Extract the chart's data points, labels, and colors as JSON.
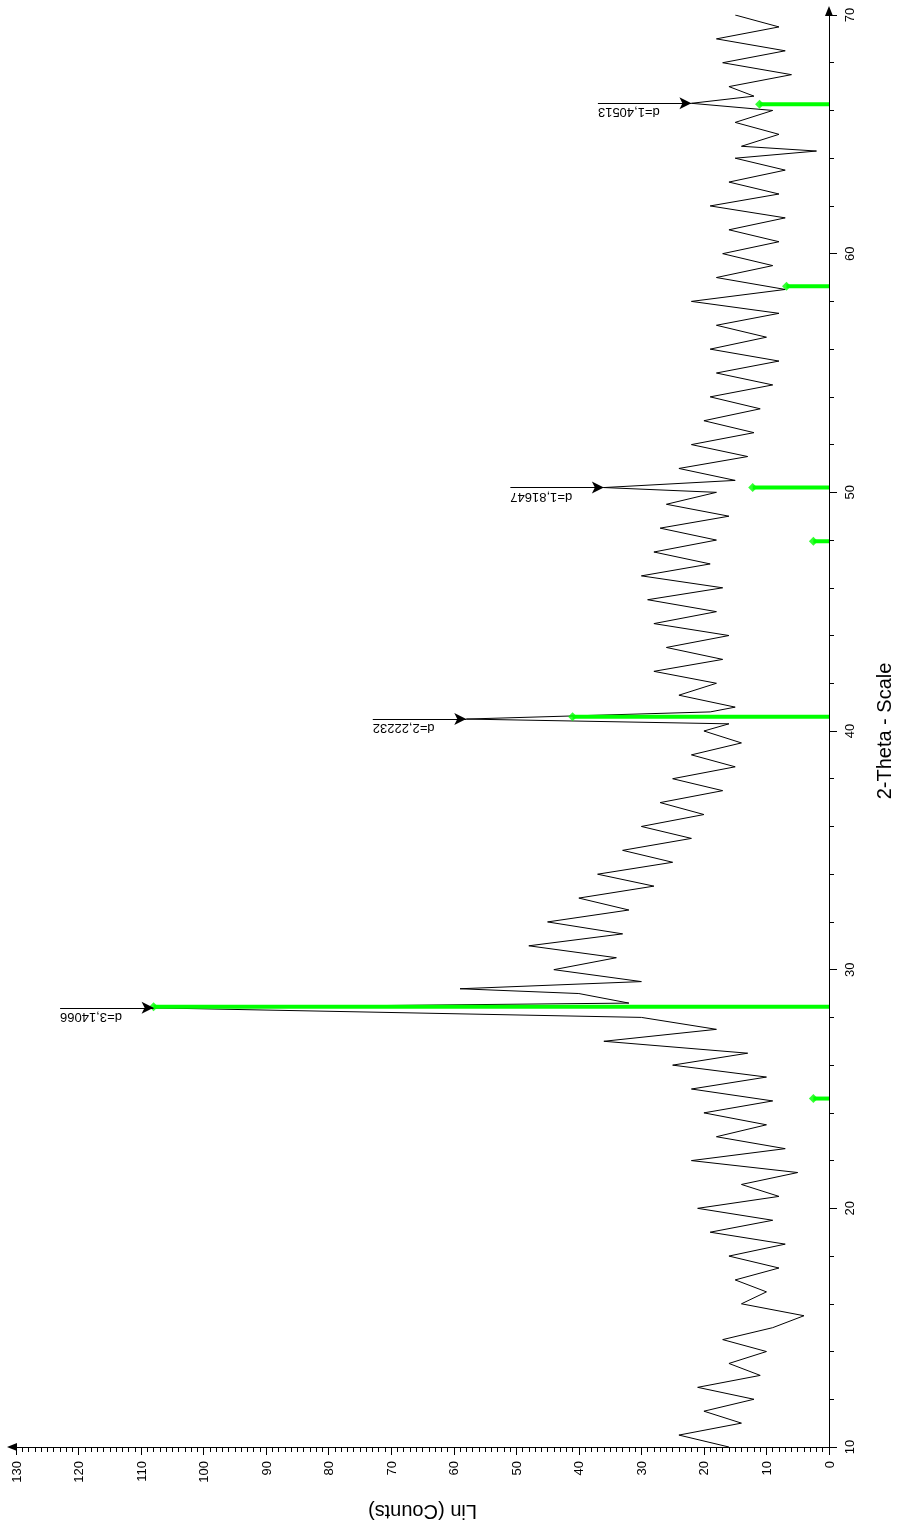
{
  "chart_data": {
    "type": "line",
    "orientation": "horizontal",
    "xlabel": "Lin (Counts)",
    "ylabel": "2-Theta - Scale",
    "xlim": [
      130,
      0
    ],
    "ylim": [
      10,
      70
    ],
    "xticks": [
      0,
      10,
      20,
      30,
      40,
      50,
      60,
      70,
      80,
      90,
      100,
      110,
      120,
      130
    ],
    "yticks": [
      10,
      20,
      30,
      40,
      50,
      60,
      70
    ],
    "grid": false,
    "series": [
      {
        "color": "#000000",
        "marker": "none",
        "x": [
          10,
          10.5,
          11,
          11.5,
          12,
          12.5,
          13,
          13.5,
          14,
          14.5,
          15,
          15.5,
          16,
          16.5,
          17,
          17.5,
          18,
          18.5,
          19,
          19.5,
          20,
          20.5,
          21,
          21.5,
          22,
          22.5,
          23,
          23.5,
          24,
          24.5,
          25,
          25.5,
          26,
          26.5,
          27,
          27.5,
          28,
          28.4,
          28.6,
          29,
          29.2,
          29.5,
          30,
          30.5,
          31,
          31.5,
          32,
          32.5,
          33,
          33.5,
          34,
          34.5,
          35,
          35.5,
          36,
          36.5,
          37,
          37.5,
          38,
          38.5,
          39,
          39.5,
          40,
          40.3,
          40.5,
          40.8,
          41,
          41.5,
          42,
          42.5,
          43,
          43.5,
          44,
          44.5,
          45,
          45.5,
          46,
          46.5,
          47,
          47.5,
          48,
          48.5,
          49,
          49.5,
          50,
          50.2,
          50.5,
          51,
          51.5,
          52,
          52.5,
          53,
          53.5,
          54,
          54.5,
          55,
          55.5,
          56,
          56.5,
          57,
          57.5,
          58,
          58.5,
          59,
          59.5,
          60,
          60.5,
          61,
          61.5,
          62,
          62.5,
          63,
          63.5,
          64,
          64.3,
          64.5,
          65,
          65.5,
          66,
          66.3,
          66.6,
          67,
          67.5,
          68,
          68.5,
          69,
          69.5,
          70
        ],
        "values": [
          16,
          24,
          14,
          20,
          12,
          21,
          11,
          16,
          10,
          17,
          9,
          4,
          14,
          10,
          15,
          8,
          16,
          7,
          19,
          9,
          21,
          8,
          14,
          5,
          22,
          7,
          18,
          10,
          20,
          9,
          22,
          10,
          25,
          13,
          36,
          18,
          30,
          108,
          32,
          40,
          59,
          30,
          44,
          34,
          48,
          33,
          45,
          32,
          40,
          28,
          37,
          25,
          33,
          22,
          30,
          20,
          27,
          17,
          25,
          15,
          22,
          14,
          20,
          16,
          58,
          19,
          15,
          24,
          18,
          28,
          17,
          26,
          16,
          28,
          18,
          29,
          17,
          30,
          19,
          28,
          18,
          27,
          16,
          26,
          18,
          36,
          15,
          24,
          13,
          22,
          12,
          20,
          11,
          19,
          9,
          18,
          8,
          19,
          10,
          18,
          8,
          22,
          7,
          18,
          9,
          17,
          8,
          16,
          7,
          19,
          8,
          16,
          7,
          15,
          2,
          14,
          8,
          15,
          9,
          22,
          12,
          16,
          6,
          17,
          7,
          18,
          8,
          15
        ]
      },
      {
        "type": "lollipop",
        "color": "#00ff00",
        "marker": "diamond",
        "x": [
          24.6,
          28.45,
          40.6,
          47.95,
          50.2,
          58.64,
          66.26
        ],
        "values": [
          2.5,
          108,
          41,
          2.5,
          12.2,
          6.8,
          11.1
        ]
      }
    ],
    "annotations": [
      {
        "text": "d=3,14066",
        "x": 108,
        "y": 28.4
      },
      {
        "text": "d=2,22232",
        "x": 58,
        "y": 40.5
      },
      {
        "text": "d=1,81647",
        "x": 36,
        "y": 50.2
      },
      {
        "text": "d=1,40513",
        "x": 22,
        "y": 66.3
      }
    ]
  }
}
